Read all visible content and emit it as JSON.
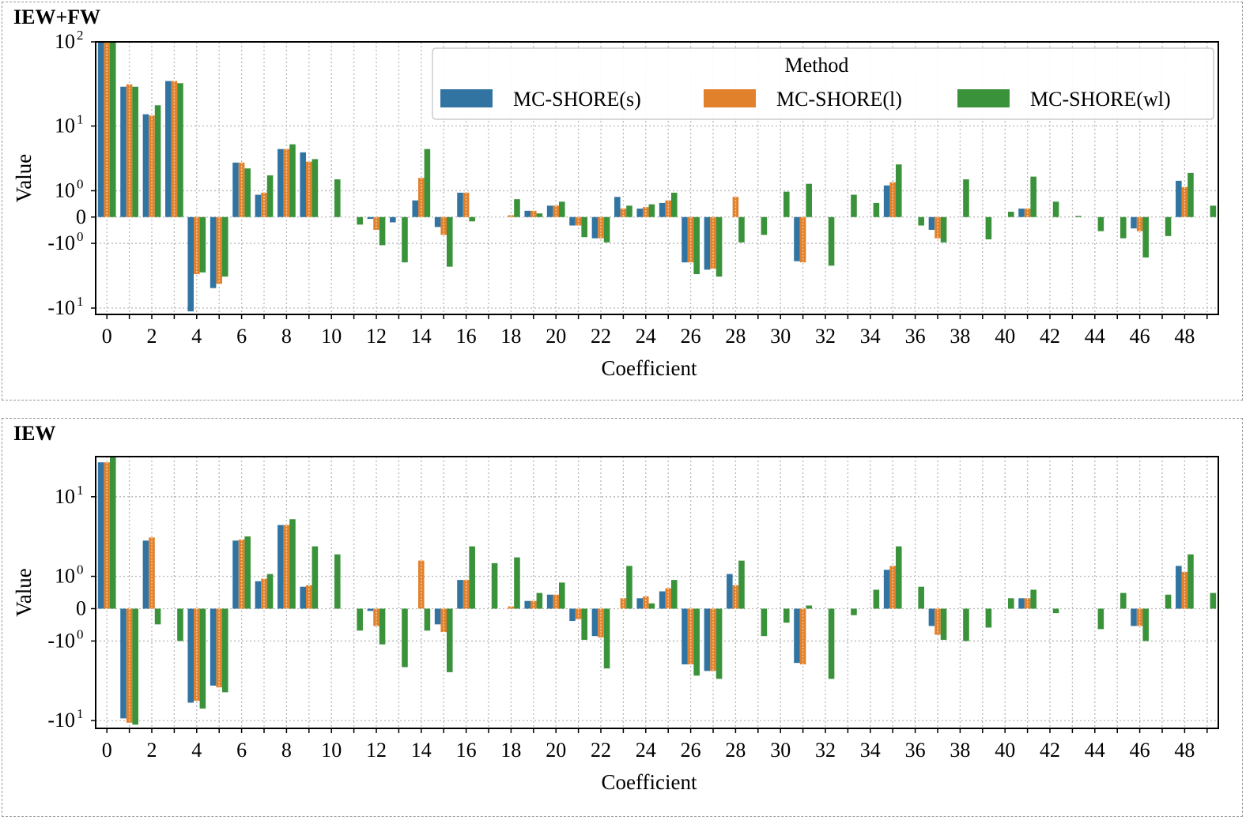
{
  "panels": [
    {
      "label": "IEW+FW"
    },
    {
      "label": "IEW"
    }
  ],
  "colors": {
    "s": "#3274a1",
    "l": "#e1812c",
    "wl": "#3a923a"
  },
  "chart_data": [
    {
      "type": "bar",
      "title": "IEW+FW",
      "xlabel": "Coefficient",
      "ylabel": "Value",
      "yscale": "symlog",
      "ylim": [
        -12,
        100
      ],
      "y_ticks": [
        {
          "value": 100,
          "base": "10",
          "exp": "2"
        },
        {
          "value": 10,
          "base": "10",
          "exp": "1"
        },
        {
          "value": 1,
          "base": "10",
          "exp": "0"
        },
        {
          "value": 0,
          "base": "0",
          "exp": ""
        },
        {
          "value": -1,
          "base": "-10",
          "exp": "0"
        },
        {
          "value": -10,
          "base": "-10",
          "exp": "1"
        }
      ],
      "grid": true,
      "legend": {
        "title": "Method",
        "placement": "top-right",
        "entries": [
          "MC-SHORE(s)",
          "MC-SHORE(l)",
          "MC-SHORE(wl)"
        ]
      },
      "x_tick_labels": [
        "0",
        "2",
        "4",
        "6",
        "8",
        "10",
        "12",
        "14",
        "16",
        "18",
        "20",
        "22",
        "24",
        "26",
        "28",
        "30",
        "32",
        "34",
        "36",
        "38",
        "40",
        "42",
        "44",
        "46",
        "48"
      ],
      "categories": [
        0,
        1,
        2,
        3,
        4,
        5,
        6,
        7,
        8,
        9,
        10,
        11,
        12,
        13,
        14,
        15,
        16,
        17,
        18,
        19,
        20,
        21,
        22,
        23,
        24,
        25,
        26,
        27,
        28,
        29,
        30,
        31,
        32,
        33,
        34,
        35,
        36,
        37,
        38,
        39,
        40,
        41,
        42,
        43,
        44,
        45,
        46,
        47,
        48,
        49
      ],
      "series": [
        {
          "name": "MC-SHORE(s)",
          "values": [
            100,
            30,
            14,
            35,
            -11,
            -5.5,
            3.2,
            0.8,
            5,
            4.5,
            0,
            0,
            -0.05,
            -0.15,
            0.55,
            -0.3,
            0.9,
            0,
            0,
            0.18,
            0.35,
            -0.25,
            -0.75,
            0.7,
            0.25,
            0.45,
            -2.3,
            -3,
            0,
            0,
            0,
            -2.2,
            0,
            0,
            0,
            1.3,
            0,
            -0.4,
            0,
            0,
            0,
            0.25,
            0,
            0,
            0,
            0,
            -0.35,
            0,
            1.6,
            0
          ]
        },
        {
          "name": "MC-SHORE(l)",
          "values": [
            100,
            32,
            13.5,
            35,
            -3.5,
            -4.8,
            3.2,
            0.9,
            5,
            3.3,
            0,
            0,
            -0.4,
            0,
            1.8,
            -0.6,
            0.9,
            0,
            0.05,
            0.18,
            0.35,
            -0.25,
            -0.75,
            0.25,
            0.3,
            0.55,
            -2.3,
            -2.9,
            0.7,
            0,
            0,
            -2.3,
            0,
            0,
            0,
            1.5,
            0,
            -0.75,
            0,
            0,
            0,
            0.25,
            0,
            0,
            0,
            0,
            -0.45,
            0,
            1.2,
            0
          ]
        },
        {
          "name": "MC-SHORE(wl)",
          "values": [
            100,
            30,
            18,
            33,
            -3.3,
            -3.8,
            2.6,
            2,
            5.8,
            3.6,
            1.7,
            -0.22,
            -1.1,
            -2.3,
            5,
            -2.7,
            -0.12,
            0,
            0.6,
            0.1,
            0.5,
            -0.7,
            -0.95,
            0.35,
            0.4,
            0.9,
            -3.5,
            -3.8,
            -0.95,
            -0.6,
            0.95,
            1.4,
            -2.6,
            0.8,
            0.45,
            3,
            -0.25,
            -0.95,
            1.7,
            -0.8,
            0.15,
            1.9,
            0.5,
            0.03,
            -0.45,
            -0.75,
            -1.9,
            -0.65,
            2.2,
            0.35
          ]
        }
      ]
    },
    {
      "type": "bar",
      "title": "IEW",
      "xlabel": "Coefficient",
      "ylabel": "Value",
      "yscale": "symlog",
      "ylim": [
        -12,
        25
      ],
      "y_ticks": [
        {
          "value": 10,
          "base": "10",
          "exp": "1"
        },
        {
          "value": 1,
          "base": "10",
          "exp": "0"
        },
        {
          "value": 0,
          "base": "0",
          "exp": ""
        },
        {
          "value": -1,
          "base": "-10",
          "exp": "0"
        },
        {
          "value": -10,
          "base": "-10",
          "exp": "1"
        }
      ],
      "grid": true,
      "x_tick_labels": [
        "0",
        "2",
        "4",
        "6",
        "8",
        "10",
        "12",
        "14",
        "16",
        "18",
        "20",
        "22",
        "24",
        "26",
        "28",
        "30",
        "32",
        "34",
        "36",
        "38",
        "40",
        "42",
        "44",
        "46",
        "48"
      ],
      "categories": [
        0,
        1,
        2,
        3,
        4,
        5,
        6,
        7,
        8,
        9,
        10,
        11,
        12,
        13,
        14,
        15,
        16,
        17,
        18,
        19,
        20,
        21,
        22,
        23,
        24,
        25,
        26,
        27,
        28,
        29,
        30,
        31,
        32,
        33,
        34,
        35,
        36,
        37,
        38,
        39,
        40,
        41,
        42,
        43,
        44,
        45,
        46,
        47,
        48,
        49
      ],
      "series": [
        {
          "name": "MC-SHORE(s)",
          "values": [
            22,
            -9.5,
            3.3,
            0,
            -6.5,
            -4.2,
            3.3,
            0.8,
            5,
            0.6,
            0,
            0,
            -0.05,
            0,
            0,
            -0.4,
            0.85,
            0,
            0,
            0.18,
            0.35,
            -0.3,
            -0.8,
            0,
            0.25,
            0.45,
            -2.3,
            -2.8,
            1.1,
            0,
            0,
            -2.2,
            0,
            0,
            0,
            1.3,
            0,
            -0.45,
            0,
            0,
            0,
            0.25,
            0,
            0,
            0,
            0,
            -0.45,
            0,
            1.5,
            0
          ]
        },
        {
          "name": "MC-SHORE(l)",
          "values": [
            22,
            -10.5,
            3.6,
            0,
            -6.2,
            -4.4,
            3.4,
            0.9,
            5,
            0.65,
            0,
            0,
            -0.45,
            0,
            1.8,
            -0.65,
            0.85,
            0,
            0.05,
            0.18,
            0.35,
            -0.25,
            -0.85,
            0.25,
            0.3,
            0.55,
            -2.3,
            -2.8,
            0.65,
            0,
            0,
            -2.3,
            0,
            0,
            0,
            1.5,
            0,
            -0.75,
            0,
            0,
            0,
            0.25,
            0,
            0,
            0,
            0,
            -0.45,
            0,
            1.2,
            0
          ]
        },
        {
          "name": "MC-SHORE(wl)",
          "values": [
            25,
            -11,
            -0.4,
            -1,
            -7.5,
            -5,
            3.7,
            1.1,
            5.8,
            2.8,
            2.2,
            -0.6,
            -1.15,
            -2.5,
            -0.6,
            -2.9,
            2.8,
            1.65,
            2,
            0.4,
            0.75,
            -0.95,
            -2.6,
            1.5,
            0.12,
            0.85,
            -3.2,
            -3.5,
            1.8,
            -0.8,
            -0.35,
            0.07,
            -3.5,
            -0.15,
            0.5,
            2.8,
            0.6,
            -0.95,
            -1,
            -0.5,
            0.25,
            0.5,
            -0.1,
            0,
            -0.55,
            0.4,
            -1,
            0.35,
            2.2,
            0.4
          ]
        }
      ]
    }
  ]
}
